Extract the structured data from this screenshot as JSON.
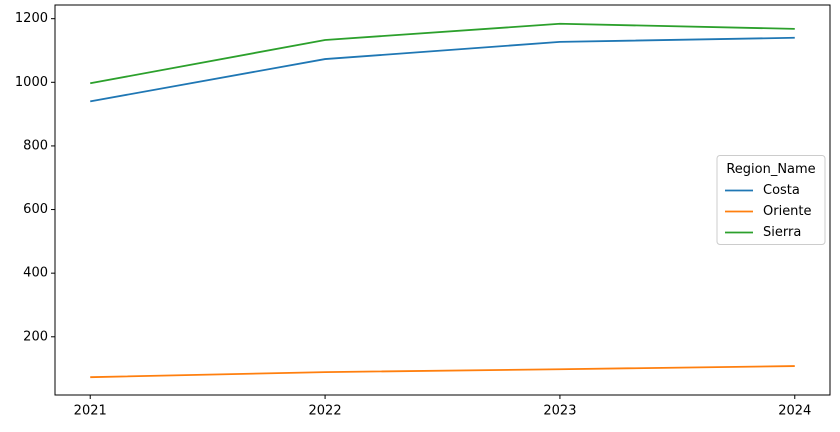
{
  "chart_data": {
    "type": "line",
    "x": [
      2021,
      2022,
      2023,
      2024
    ],
    "series": [
      {
        "name": "Costa",
        "color": "#1f77b4",
        "values": [
          940,
          1073,
          1127,
          1140
        ]
      },
      {
        "name": "Oriente",
        "color": "#ff7f0e",
        "values": [
          73,
          89,
          98,
          108
        ]
      },
      {
        "name": "Sierra",
        "color": "#2ca02c",
        "values": [
          997,
          1133,
          1184,
          1168
        ]
      }
    ],
    "xlim": [
      2020.85,
      2024.15
    ],
    "xticks": [
      2021,
      2022,
      2023,
      2024
    ],
    "ylim": [
      17,
      1243
    ],
    "yticks": [
      200,
      400,
      600,
      800,
      1000,
      1200
    ],
    "grid": false,
    "legend_title": "Region_Name",
    "legend_loc": "center right"
  }
}
